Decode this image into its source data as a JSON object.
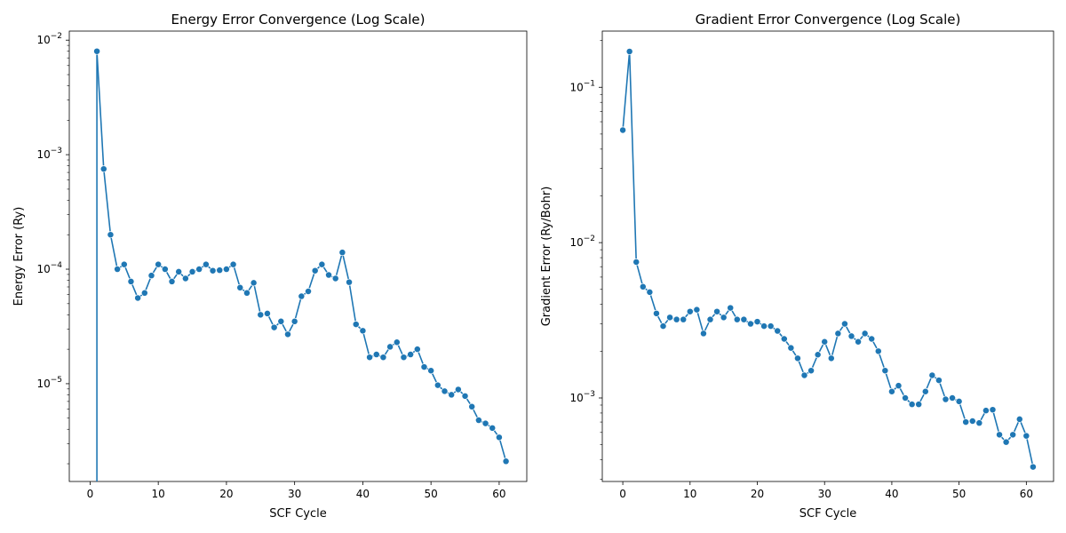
{
  "chart_data": [
    {
      "type": "line",
      "title": "Energy Error Convergence (Log Scale)",
      "xlabel": "SCF Cycle",
      "ylabel": "Energy Error (Ry)",
      "yscale": "log",
      "xlim": [
        -3.05,
        64.05
      ],
      "ylim": [
        1.4e-06,
        0.012
      ],
      "x_ticks": [
        {
          "value": 0,
          "label": "0"
        },
        {
          "value": 10,
          "label": "10"
        },
        {
          "value": 20,
          "label": "20"
        },
        {
          "value": 30,
          "label": "30"
        },
        {
          "value": 40,
          "label": "40"
        },
        {
          "value": 50,
          "label": "50"
        },
        {
          "value": 60,
          "label": "60"
        }
      ],
      "y_ticks": [
        {
          "value": 1e-05,
          "base": "10",
          "exp": "−5"
        },
        {
          "value": 0.0001,
          "base": "10",
          "exp": "−4"
        },
        {
          "value": 0.001,
          "base": "10",
          "exp": "−3"
        },
        {
          "value": 0.01,
          "base": "10",
          "exp": "−2"
        }
      ],
      "color": "#1f77b4",
      "grid": false,
      "x": [
        1,
        2,
        3,
        4,
        5,
        6,
        7,
        8,
        9,
        10,
        11,
        12,
        13,
        14,
        15,
        16,
        17,
        18,
        19,
        20,
        21,
        22,
        23,
        24,
        25,
        26,
        27,
        28,
        29,
        30,
        31,
        32,
        33,
        34,
        35,
        36,
        37,
        38,
        39,
        40,
        41,
        42,
        43,
        44,
        45,
        46,
        47,
        48,
        49,
        50,
        51,
        52,
        53,
        54,
        55,
        56,
        57,
        58,
        59,
        60,
        61
      ],
      "y": [
        0.008,
        0.00075,
        0.0002,
        0.0001,
        0.00011,
        7.8e-05,
        5.6e-05,
        6.2e-05,
        8.8e-05,
        0.00011,
        0.0001,
        7.8e-05,
        9.5e-05,
        8.3e-05,
        9.5e-05,
        0.0001,
        0.00011,
        9.7e-05,
        9.8e-05,
        0.0001,
        0.00011,
        6.9e-05,
        6.2e-05,
        7.6e-05,
        4e-05,
        4.1e-05,
        3.1e-05,
        3.5e-05,
        2.7e-05,
        3.5e-05,
        5.8e-05,
        6.4e-05,
        9.7e-05,
        0.00011,
        8.9e-05,
        8.3e-05,
        0.00014,
        7.7e-05,
        3.3e-05,
        2.9e-05,
        1.7e-05,
        1.8e-05,
        1.7e-05,
        2.1e-05,
        2.3e-05,
        1.7e-05,
        1.8e-05,
        2e-05,
        1.4e-05,
        1.3e-05,
        9.7e-06,
        8.6e-06,
        8e-06,
        8.9e-06,
        7.8e-06,
        6.3e-06,
        4.8e-06,
        4.5e-06,
        4.1e-06,
        3.4e-06,
        2.1e-06
      ],
      "drop_line_to_axis_at_x": 1
    },
    {
      "type": "line",
      "title": "Gradient Error Convergence (Log Scale)",
      "xlabel": "SCF Cycle",
      "ylabel": "Gradient Error (Ry/Bohr)",
      "yscale": "log",
      "xlim": [
        -3.05,
        64.05
      ],
      "ylim": [
        0.00029,
        0.23
      ],
      "x_ticks": [
        {
          "value": 0,
          "label": "0"
        },
        {
          "value": 10,
          "label": "10"
        },
        {
          "value": 20,
          "label": "20"
        },
        {
          "value": 30,
          "label": "30"
        },
        {
          "value": 40,
          "label": "40"
        },
        {
          "value": 50,
          "label": "50"
        },
        {
          "value": 60,
          "label": "60"
        }
      ],
      "y_ticks": [
        {
          "value": 0.001,
          "base": "10",
          "exp": "−3"
        },
        {
          "value": 0.01,
          "base": "10",
          "exp": "−2"
        },
        {
          "value": 0.1,
          "base": "10",
          "exp": "−1"
        }
      ],
      "color": "#1f77b4",
      "grid": false,
      "x": [
        0,
        1,
        2,
        3,
        4,
        5,
        6,
        7,
        8,
        9,
        10,
        11,
        12,
        13,
        14,
        15,
        16,
        17,
        18,
        19,
        20,
        21,
        22,
        23,
        24,
        25,
        26,
        27,
        28,
        29,
        30,
        31,
        32,
        33,
        34,
        35,
        36,
        37,
        38,
        39,
        40,
        41,
        42,
        43,
        44,
        45,
        46,
        47,
        48,
        49,
        50,
        51,
        52,
        53,
        54,
        55,
        56,
        57,
        58,
        59,
        60,
        61
      ],
      "y": [
        0.053,
        0.17,
        0.0075,
        0.0052,
        0.0048,
        0.0035,
        0.0029,
        0.0033,
        0.0032,
        0.0032,
        0.0036,
        0.0037,
        0.0026,
        0.0032,
        0.0036,
        0.0033,
        0.0038,
        0.0032,
        0.0032,
        0.003,
        0.0031,
        0.0029,
        0.0029,
        0.0027,
        0.0024,
        0.0021,
        0.0018,
        0.0014,
        0.0015,
        0.0019,
        0.0023,
        0.0018,
        0.0026,
        0.003,
        0.0025,
        0.0023,
        0.0026,
        0.0024,
        0.002,
        0.0015,
        0.0011,
        0.0012,
        0.001,
        0.00091,
        0.00091,
        0.0011,
        0.0014,
        0.0013,
        0.00098,
        0.001,
        0.00095,
        0.0007,
        0.00071,
        0.00069,
        0.00083,
        0.00084,
        0.00058,
        0.00052,
        0.00058,
        0.00073,
        0.00057,
        0.00036
      ]
    }
  ]
}
